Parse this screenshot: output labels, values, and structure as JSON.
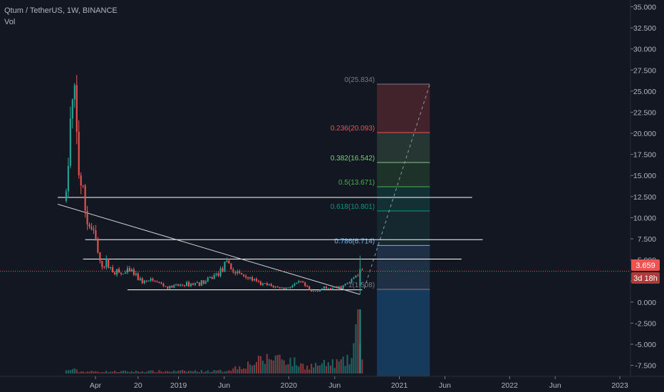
{
  "header": {
    "symbol": "Qtum / TetherUS, 1W, BINANCE",
    "indicator": "Vol"
  },
  "price_badge": {
    "value": "3.659",
    "countdown": "3d 18h"
  },
  "colors": {
    "background": "#131722",
    "up": "#26a69a",
    "down": "#ef5350",
    "axis_text": "#b2b5be",
    "hline": "#ffffff",
    "price_line": "#ef5350"
  },
  "chart_data": {
    "type": "candlestick",
    "title": "Qtum / TetherUS, 1W, BINANCE",
    "ylim": [
      -8.8,
      35.8
    ],
    "y_ticks": [
      "35.000",
      "32.500",
      "30.000",
      "27.500",
      "25.000",
      "22.500",
      "20.000",
      "17.500",
      "15.000",
      "12.500",
      "10.000",
      "7.500",
      "5.000",
      "2.500",
      "0.000",
      "-2.500",
      "-5.000",
      "-7.500"
    ],
    "y_tick_values": [
      35,
      32.5,
      30,
      27.5,
      25,
      22.5,
      20,
      17.5,
      15,
      12.5,
      10,
      7.5,
      5,
      2.5,
      0,
      -2.5,
      -5,
      -7.5
    ],
    "x_ticks": [
      "Apr",
      "20",
      "2019",
      "Jun",
      "2020",
      "Jun",
      "2021",
      "Jun",
      "2022",
      "Jun",
      "2023"
    ],
    "x_tick_dates": [
      "2018-04-01",
      "2018-08-20",
      "2019-01-01",
      "2019-06-01",
      "2020-01-01",
      "2020-06-01",
      "2021-01-01",
      "2021-06-01",
      "2022-01-01",
      "2022-06-01",
      "2023-01-01"
    ],
    "last_price": 3.659,
    "close_trend": [
      [
        "2017-12-25",
        12.6
      ],
      [
        "2018-01-08",
        21.0
      ],
      [
        "2018-01-15",
        22.8
      ],
      [
        "2018-01-22",
        23.4
      ],
      [
        "2018-02-05",
        15.5
      ],
      [
        "2018-02-19",
        12.5
      ],
      [
        "2018-03-05",
        9.5
      ],
      [
        "2018-03-19",
        8.6
      ],
      [
        "2018-04-02",
        7.2
      ],
      [
        "2018-04-16",
        4.4
      ],
      [
        "2018-05-07",
        4.6
      ],
      [
        "2018-05-28",
        3.8
      ],
      [
        "2018-06-25",
        3.3
      ],
      [
        "2018-07-30",
        3.6
      ],
      [
        "2018-09-03",
        2.4
      ],
      [
        "2018-10-15",
        2.5
      ],
      [
        "2018-11-26",
        1.7
      ],
      [
        "2019-01-07",
        2.0
      ],
      [
        "2019-02-18",
        2.2
      ],
      [
        "2019-04-01",
        2.4
      ],
      [
        "2019-05-13",
        3.5
      ],
      [
        "2019-06-17",
        4.6
      ],
      [
        "2019-07-01",
        3.6
      ],
      [
        "2019-08-12",
        3.1
      ],
      [
        "2019-09-23",
        2.2
      ],
      [
        "2019-11-04",
        1.9
      ],
      [
        "2019-12-16",
        1.6
      ],
      [
        "2020-02-10",
        2.3
      ],
      [
        "2020-03-16",
        1.2
      ],
      [
        "2020-04-20",
        1.6
      ],
      [
        "2020-05-25",
        1.6
      ],
      [
        "2020-06-22",
        1.8
      ],
      [
        "2020-07-20",
        2.3
      ],
      [
        "2020-08-10",
        3.2
      ],
      [
        "2020-08-31",
        3.66
      ]
    ],
    "volume": {
      "dates": [
        "2017-12-25",
        "2018-01-15",
        "2018-02-05",
        "2018-06-01",
        "2019-06-01",
        "2019-11-25",
        "2020-02-24",
        "2020-07-06",
        "2020-07-27",
        "2020-08-17",
        "2020-08-24"
      ],
      "relative": [
        0.04,
        0.07,
        0.03,
        0.03,
        0.04,
        0.27,
        0.11,
        0.18,
        0.23,
        0.9,
        0.35
      ]
    },
    "horizontal_levels": [
      {
        "value": 12.4,
        "from": "2017-11-27",
        "to": "2021-08-30"
      },
      {
        "value": 7.4,
        "from": "2018-02-26",
        "to": "2021-10-04"
      },
      {
        "value": 5.1,
        "from": "2018-02-19",
        "to": "2021-07-26"
      },
      {
        "value": 1.45,
        "from": "2018-07-16",
        "to": "2020-08-31"
      }
    ],
    "trendline": {
      "from": [
        "2017-11-27",
        11.6
      ],
      "to": [
        "2020-08-24",
        0.9
      ]
    },
    "fibonacci": {
      "range_dates": [
        "2020-10-19",
        "2021-04-12"
      ],
      "levels": [
        {
          "label": "0(25.834)",
          "value": 25.834,
          "color": "#787b86"
        },
        {
          "label": "0.236(20.093)",
          "value": 20.093,
          "color": "#ef5350"
        },
        {
          "label": "0.382(16.542)",
          "value": 16.542,
          "color": "#81c784"
        },
        {
          "label": "0.5(13.671)",
          "value": 13.671,
          "color": "#4caf50"
        },
        {
          "label": "0.618(10.801)",
          "value": 10.801,
          "color": "#089981"
        },
        {
          "label": "0.786(6.714)",
          "value": 6.714,
          "color": "#64b5f6"
        },
        {
          "label": "1(1.508)",
          "value": 1.508,
          "color": "#787b86"
        }
      ]
    }
  }
}
